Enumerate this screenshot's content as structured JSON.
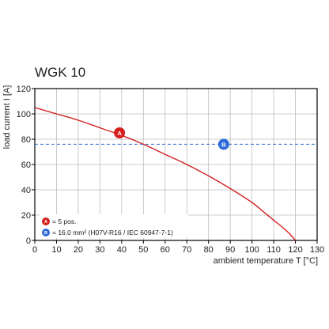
{
  "chart_data": {
    "type": "line",
    "title": "WGK 10",
    "xlabel": "ambient temperature T [°C]",
    "ylabel": "load current I [A]",
    "xlim": [
      0,
      130
    ],
    "ylim": [
      0,
      120
    ],
    "x_ticks": [
      0,
      10,
      20,
      30,
      40,
      50,
      60,
      70,
      80,
      90,
      100,
      110,
      120,
      130
    ],
    "y_ticks": [
      0,
      20,
      40,
      60,
      80,
      100,
      120
    ],
    "grid": true,
    "series": [
      {
        "name": "A",
        "color": "#d4201f",
        "style": "solid",
        "x": [
          0,
          10,
          20,
          30,
          40,
          50,
          60,
          70,
          80,
          90,
          100,
          105,
          110,
          115,
          118,
          120
        ],
        "y": [
          105,
          100,
          95,
          89,
          83,
          76,
          68,
          60,
          51,
          41,
          30,
          23,
          16,
          9,
          4,
          0
        ]
      },
      {
        "name": "B",
        "color": "#2f6bd8",
        "style": "dashed",
        "x": [
          0,
          130
        ],
        "y": [
          76,
          76
        ]
      }
    ],
    "markers": [
      {
        "label": "A",
        "x": 39,
        "y": 85,
        "color": "#d4201f"
      },
      {
        "label": "B",
        "x": 87,
        "y": 76,
        "color": "#2f6bd8"
      }
    ],
    "legend": {
      "placement": "bottom-left",
      "entries": [
        {
          "marker": "A",
          "color": "#d4201f",
          "text": "= 5 pos."
        },
        {
          "marker": "B",
          "color": "#2f6bd8",
          "text": "= 16.0 mm² (H07V-R16 / IEC 60947-7-1)"
        }
      ]
    }
  }
}
